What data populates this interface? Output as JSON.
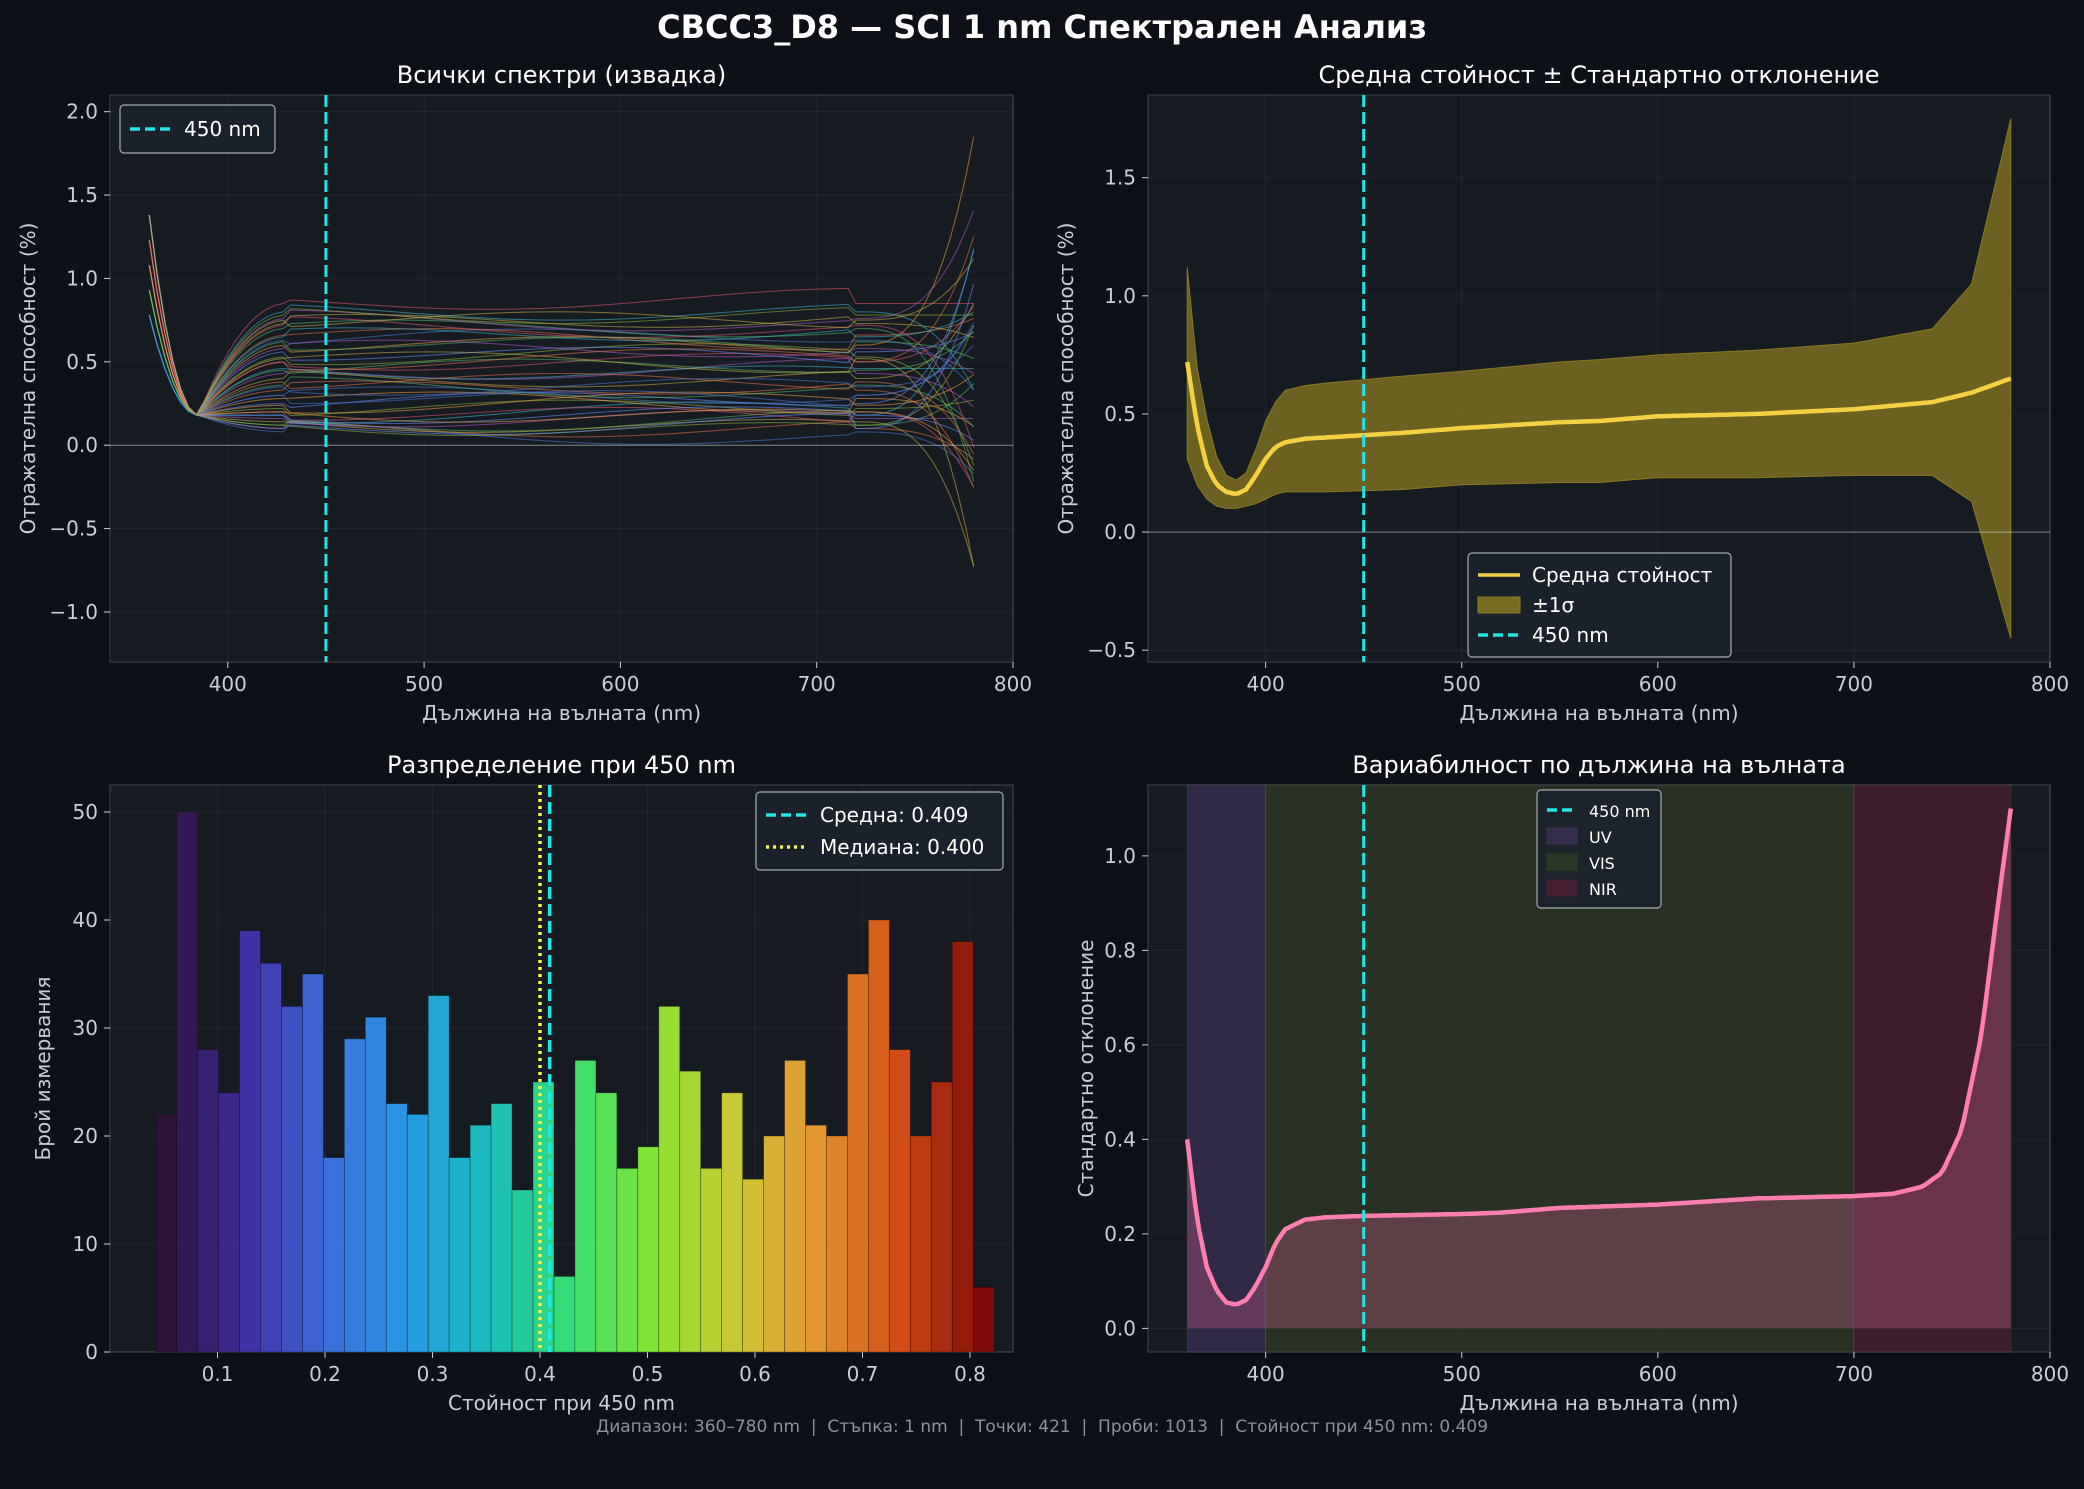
{
  "title": "CBCC3_D8 — SCI 1 nm Спектрален Анализ",
  "footer": "Диапазон: 360–780 nm  |  Стъпка: 1 nm  |  Точки: 421  |  Проби: 1013  |  Стойност при 450 nm: 0.409",
  "colors": {
    "background": "#0d1117",
    "axes_bg": "#161b22",
    "cyan": "#22e5e5",
    "mean_line": "#f5d142",
    "std_line": "#ff7eb0",
    "median": "#f5f542"
  },
  "chart_data": [
    {
      "type": "line",
      "title": "Всички спектри (извадка)",
      "xlabel": "Дължина на вълната (nm)",
      "ylabel": "Отражателна способност (%)",
      "xlim": [
        340,
        800
      ],
      "ylim": [
        -1.3,
        2.1
      ],
      "xticks": [
        400,
        500,
        600,
        700,
        800
      ],
      "yticks": [
        -1.0,
        -0.5,
        0.0,
        0.5,
        1.0,
        1.5,
        2.0
      ],
      "ytick_labels": [
        "−1.0",
        "−0.5",
        "0.0",
        "0.5",
        "1.0",
        "1.5",
        "2.0"
      ],
      "vline": 450,
      "legend": [
        {
          "label": "450 nm",
          "style": "dashed",
          "color": "#22e5e5"
        }
      ],
      "legend_position": "upper-left",
      "sample_levels": [
        0.08,
        0.1,
        0.12,
        0.14,
        0.16,
        0.18,
        0.2,
        0.22,
        0.25,
        0.28,
        0.3,
        0.33,
        0.36,
        0.4,
        0.43,
        0.46,
        0.5,
        0.53,
        0.56,
        0.6,
        0.63,
        0.66,
        0.7,
        0.73,
        0.76,
        0.8,
        0.85,
        0.12,
        0.18,
        0.24,
        0.3,
        0.38,
        0.45,
        0.52,
        0.58,
        0.65,
        0.72,
        0.78,
        0.1,
        0.2,
        0.35,
        0.5,
        0.62,
        0.75
      ],
      "note_axis_line": 0.0
    },
    {
      "type": "area",
      "title": "Средна стойност ± Стандартно отклонение",
      "xlabel": "Дължина на вълната (nm)",
      "ylabel": "Отражателна способност (%)",
      "xlim": [
        340,
        800
      ],
      "ylim": [
        -0.55,
        1.85
      ],
      "xticks": [
        400,
        500,
        600,
        700,
        800
      ],
      "yticks": [
        -0.5,
        0.0,
        0.5,
        1.0,
        1.5
      ],
      "ytick_labels": [
        "−0.5",
        "0.0",
        "0.5",
        "1.0",
        "1.5"
      ],
      "vline": 450,
      "series": [
        {
          "name": "Средна стойност",
          "x": [
            360,
            365,
            370,
            375,
            380,
            385,
            390,
            395,
            400,
            405,
            410,
            420,
            430,
            450,
            470,
            500,
            550,
            570,
            600,
            650,
            700,
            740,
            760,
            780
          ],
          "y": [
            0.72,
            0.45,
            0.28,
            0.2,
            0.17,
            0.16,
            0.18,
            0.24,
            0.31,
            0.36,
            0.38,
            0.395,
            0.4,
            0.41,
            0.42,
            0.44,
            0.465,
            0.47,
            0.49,
            0.5,
            0.52,
            0.55,
            0.59,
            0.65
          ]
        },
        {
          "name": "±1σ",
          "x": [
            360,
            365,
            370,
            375,
            380,
            385,
            390,
            395,
            400,
            405,
            410,
            420,
            430,
            450,
            470,
            500,
            550,
            570,
            600,
            650,
            700,
            740,
            760,
            780
          ],
          "upper": [
            1.12,
            0.7,
            0.48,
            0.32,
            0.24,
            0.22,
            0.25,
            0.35,
            0.47,
            0.55,
            0.6,
            0.62,
            0.63,
            0.645,
            0.66,
            0.68,
            0.72,
            0.73,
            0.75,
            0.77,
            0.8,
            0.86,
            1.05,
            1.75
          ],
          "lower": [
            0.31,
            0.2,
            0.14,
            0.11,
            0.1,
            0.1,
            0.11,
            0.12,
            0.14,
            0.16,
            0.17,
            0.17,
            0.17,
            0.175,
            0.18,
            0.2,
            0.21,
            0.21,
            0.23,
            0.23,
            0.24,
            0.24,
            0.13,
            -0.45
          ]
        }
      ],
      "legend": [
        {
          "label": "Средна стойност",
          "style": "line",
          "color": "#f5d142"
        },
        {
          "label": "±1σ",
          "style": "patch",
          "color": "#8a7a22"
        },
        {
          "label": "450 nm",
          "style": "dashed",
          "color": "#22e5e5"
        }
      ],
      "legend_position": "lower-center"
    },
    {
      "type": "bar",
      "title": "Разпределение при 450 nm",
      "xlabel": "Стойност при 450 nm",
      "ylabel": "Брой измервания",
      "xlim": [
        0.0,
        0.84
      ],
      "ylim": [
        0,
        52.5
      ],
      "xticks": [
        0.1,
        0.2,
        0.3,
        0.4,
        0.5,
        0.6,
        0.7,
        0.8
      ],
      "yticks": [
        0,
        10,
        20,
        30,
        40,
        50
      ],
      "bin_start": 0.0425,
      "bin_width": 0.0195,
      "values": [
        22,
        50,
        28,
        24,
        39,
        36,
        32,
        35,
        18,
        29,
        31,
        23,
        22,
        33,
        18,
        21,
        23,
        15,
        25,
        7,
        27,
        24,
        17,
        19,
        32,
        26,
        17,
        24,
        16,
        20,
        27,
        21,
        20,
        35,
        40,
        28,
        20,
        25,
        38,
        6
      ],
      "mean": 0.409,
      "median": 0.4,
      "legend": [
        {
          "label": "Средна: 0.409",
          "style": "dashed",
          "color": "#22e5e5"
        },
        {
          "label": "Медиана: 0.400",
          "style": "dotted",
          "color": "#f5f542"
        }
      ],
      "legend_position": "upper-right"
    },
    {
      "type": "area",
      "title": "Вариабилност по дължина на вълната",
      "xlabel": "Дължина на вълната (nm)",
      "ylabel": "Стандартно отклонение",
      "xlim": [
        340,
        800
      ],
      "ylim": [
        -0.05,
        1.15
      ],
      "xticks": [
        400,
        500,
        600,
        700,
        800
      ],
      "yticks": [
        0.0,
        0.2,
        0.4,
        0.6,
        0.8,
        1.0
      ],
      "vline": 450,
      "regions": [
        {
          "name": "UV",
          "from": 360,
          "to": 400,
          "color": "#3a2f55"
        },
        {
          "name": "VIS",
          "from": 400,
          "to": 700,
          "color": "#2f3a26"
        },
        {
          "name": "NIR",
          "from": 700,
          "to": 780,
          "color": "#4a1f33"
        }
      ],
      "series": [
        {
          "name": "std",
          "x": [
            360,
            365,
            370,
            375,
            380,
            385,
            390,
            395,
            400,
            405,
            410,
            420,
            430,
            450,
            500,
            520,
            550,
            600,
            650,
            700,
            720,
            735,
            745,
            755,
            765,
            772,
            780
          ],
          "y": [
            0.4,
            0.23,
            0.13,
            0.08,
            0.055,
            0.05,
            0.06,
            0.09,
            0.13,
            0.18,
            0.21,
            0.23,
            0.235,
            0.238,
            0.242,
            0.245,
            0.255,
            0.262,
            0.275,
            0.28,
            0.285,
            0.3,
            0.33,
            0.42,
            0.62,
            0.85,
            1.1
          ]
        }
      ],
      "legend": [
        {
          "label": "450 nm",
          "style": "dashed",
          "color": "#22e5e5"
        },
        {
          "label": "UV",
          "style": "patch",
          "color": "#3a2f55"
        },
        {
          "label": "VIS",
          "style": "patch",
          "color": "#2f3a26"
        },
        {
          "label": "NIR",
          "style": "patch",
          "color": "#4a1f33"
        }
      ],
      "legend_position": "upper-center"
    }
  ]
}
